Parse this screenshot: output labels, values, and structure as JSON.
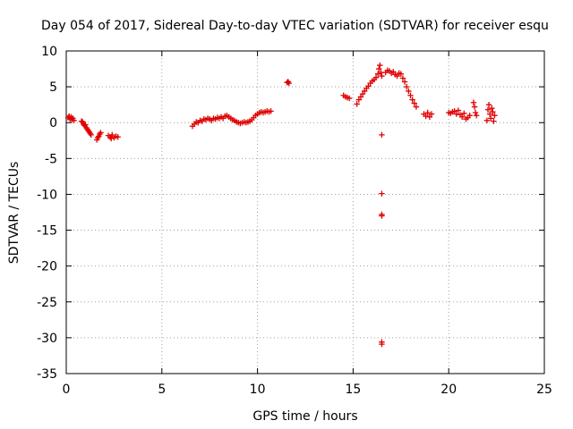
{
  "chart_data": {
    "type": "scatter",
    "title": "Day 054 of 2017, Sidereal Day-to-day VTEC variation (SDTVAR) for receiver esqu",
    "xlabel": "GPS time / hours",
    "ylabel": "SDTVAR / TECUs",
    "xlim": [
      0,
      25
    ],
    "ylim": [
      -35,
      10
    ],
    "xticks": [
      0,
      5,
      10,
      15,
      20,
      25
    ],
    "yticks": [
      10,
      5,
      0,
      -5,
      -10,
      -15,
      -20,
      -25,
      -30,
      -35
    ],
    "grid": true,
    "marker": "+",
    "color": "#e00000",
    "series": [
      {
        "name": "SDTVAR",
        "points": [
          [
            0.1,
            0.7
          ],
          [
            0.15,
            0.9
          ],
          [
            0.2,
            0.5
          ],
          [
            0.25,
            0.8
          ],
          [
            0.3,
            0.4
          ],
          [
            0.35,
            0.6
          ],
          [
            0.4,
            0.3
          ],
          [
            0.8,
            0.2
          ],
          [
            0.85,
            0.1
          ],
          [
            0.9,
            -0.2
          ],
          [
            0.95,
            -0.4
          ],
          [
            1.0,
            -0.3
          ],
          [
            1.05,
            -0.7
          ],
          [
            1.1,
            -0.9
          ],
          [
            1.15,
            -1.1
          ],
          [
            1.2,
            -1.3
          ],
          [
            1.25,
            -1.5
          ],
          [
            1.3,
            -1.7
          ],
          [
            1.6,
            -2.4
          ],
          [
            1.65,
            -2.1
          ],
          [
            1.7,
            -1.9
          ],
          [
            1.75,
            -1.6
          ],
          [
            1.8,
            -1.4
          ],
          [
            2.2,
            -1.8
          ],
          [
            2.3,
            -2.0
          ],
          [
            2.35,
            -2.2
          ],
          [
            2.4,
            -1.7
          ],
          [
            2.5,
            -2.1
          ],
          [
            2.6,
            -1.9
          ],
          [
            2.7,
            -2.0
          ],
          [
            6.6,
            -0.5
          ],
          [
            6.7,
            -0.2
          ],
          [
            6.8,
            0.1
          ],
          [
            6.9,
            0.0
          ],
          [
            7.0,
            0.3
          ],
          [
            7.1,
            0.2
          ],
          [
            7.2,
            0.5
          ],
          [
            7.3,
            0.4
          ],
          [
            7.4,
            0.6
          ],
          [
            7.5,
            0.5
          ],
          [
            7.6,
            0.3
          ],
          [
            7.7,
            0.6
          ],
          [
            7.8,
            0.5
          ],
          [
            7.9,
            0.7
          ],
          [
            8.0,
            0.6
          ],
          [
            8.1,
            0.8
          ],
          [
            8.2,
            0.6
          ],
          [
            8.3,
            0.9
          ],
          [
            8.4,
            1.0
          ],
          [
            8.5,
            0.8
          ],
          [
            8.6,
            0.6
          ],
          [
            8.7,
            0.4
          ],
          [
            8.8,
            0.3
          ],
          [
            8.9,
            0.1
          ],
          [
            9.0,
            0.0
          ],
          [
            9.1,
            -0.1
          ],
          [
            9.2,
            0.0
          ],
          [
            9.3,
            0.1
          ],
          [
            9.4,
            0.0
          ],
          [
            9.5,
            0.1
          ],
          [
            9.6,
            0.2
          ],
          [
            9.7,
            0.4
          ],
          [
            9.8,
            0.7
          ],
          [
            9.9,
            1.0
          ],
          [
            10.0,
            1.2
          ],
          [
            10.1,
            1.4
          ],
          [
            10.2,
            1.5
          ],
          [
            10.3,
            1.4
          ],
          [
            10.4,
            1.5
          ],
          [
            10.5,
            1.6
          ],
          [
            10.6,
            1.5
          ],
          [
            10.7,
            1.6
          ],
          [
            11.55,
            5.6
          ],
          [
            11.6,
            5.7
          ],
          [
            11.65,
            5.5
          ],
          [
            14.5,
            3.8
          ],
          [
            14.6,
            3.6
          ],
          [
            14.7,
            3.5
          ],
          [
            14.8,
            3.4
          ],
          [
            15.2,
            2.6
          ],
          [
            15.3,
            3.2
          ],
          [
            15.4,
            3.6
          ],
          [
            15.5,
            4.0
          ],
          [
            15.6,
            4.4
          ],
          [
            15.7,
            4.8
          ],
          [
            15.8,
            5.1
          ],
          [
            15.9,
            5.5
          ],
          [
            16.0,
            5.8
          ],
          [
            16.1,
            6.0
          ],
          [
            16.2,
            6.3
          ],
          [
            16.3,
            6.8
          ],
          [
            16.35,
            7.5
          ],
          [
            16.4,
            8.0
          ],
          [
            16.45,
            7.0
          ],
          [
            16.5,
            6.5
          ],
          [
            16.5,
            -1.7
          ],
          [
            16.5,
            -9.9
          ],
          [
            16.5,
            -12.8
          ],
          [
            16.5,
            -13.0
          ],
          [
            16.5,
            -30.6
          ],
          [
            16.5,
            -30.9
          ],
          [
            16.7,
            7.0
          ],
          [
            16.8,
            7.3
          ],
          [
            16.9,
            7.2
          ],
          [
            17.0,
            6.9
          ],
          [
            17.1,
            7.1
          ],
          [
            17.2,
            6.7
          ],
          [
            17.3,
            6.5
          ],
          [
            17.4,
            6.9
          ],
          [
            17.5,
            6.8
          ],
          [
            17.6,
            6.2
          ],
          [
            17.7,
            5.7
          ],
          [
            17.8,
            5.0
          ],
          [
            17.9,
            4.4
          ],
          [
            18.0,
            3.8
          ],
          [
            18.1,
            3.2
          ],
          [
            18.2,
            2.7
          ],
          [
            18.3,
            2.2
          ],
          [
            18.7,
            1.2
          ],
          [
            18.8,
            0.9
          ],
          [
            18.9,
            1.4
          ],
          [
            19.0,
            0.8
          ],
          [
            19.1,
            1.2
          ],
          [
            20.0,
            1.4
          ],
          [
            20.1,
            1.3
          ],
          [
            20.2,
            1.5
          ],
          [
            20.3,
            1.6
          ],
          [
            20.4,
            1.2
          ],
          [
            20.5,
            1.7
          ],
          [
            20.6,
            1.1
          ],
          [
            20.7,
            0.8
          ],
          [
            20.8,
            1.3
          ],
          [
            20.9,
            0.5
          ],
          [
            21.0,
            0.7
          ],
          [
            21.1,
            1.0
          ],
          [
            21.3,
            2.8
          ],
          [
            21.35,
            2.2
          ],
          [
            21.4,
            1.4
          ],
          [
            21.45,
            1.0
          ],
          [
            22.0,
            0.3
          ],
          [
            22.05,
            1.8
          ],
          [
            22.1,
            2.5
          ],
          [
            22.15,
            1.2
          ],
          [
            22.2,
            0.6
          ],
          [
            22.25,
            2.0
          ],
          [
            22.3,
            1.5
          ],
          [
            22.35,
            0.2
          ],
          [
            22.4,
            1.0
          ]
        ]
      }
    ]
  }
}
